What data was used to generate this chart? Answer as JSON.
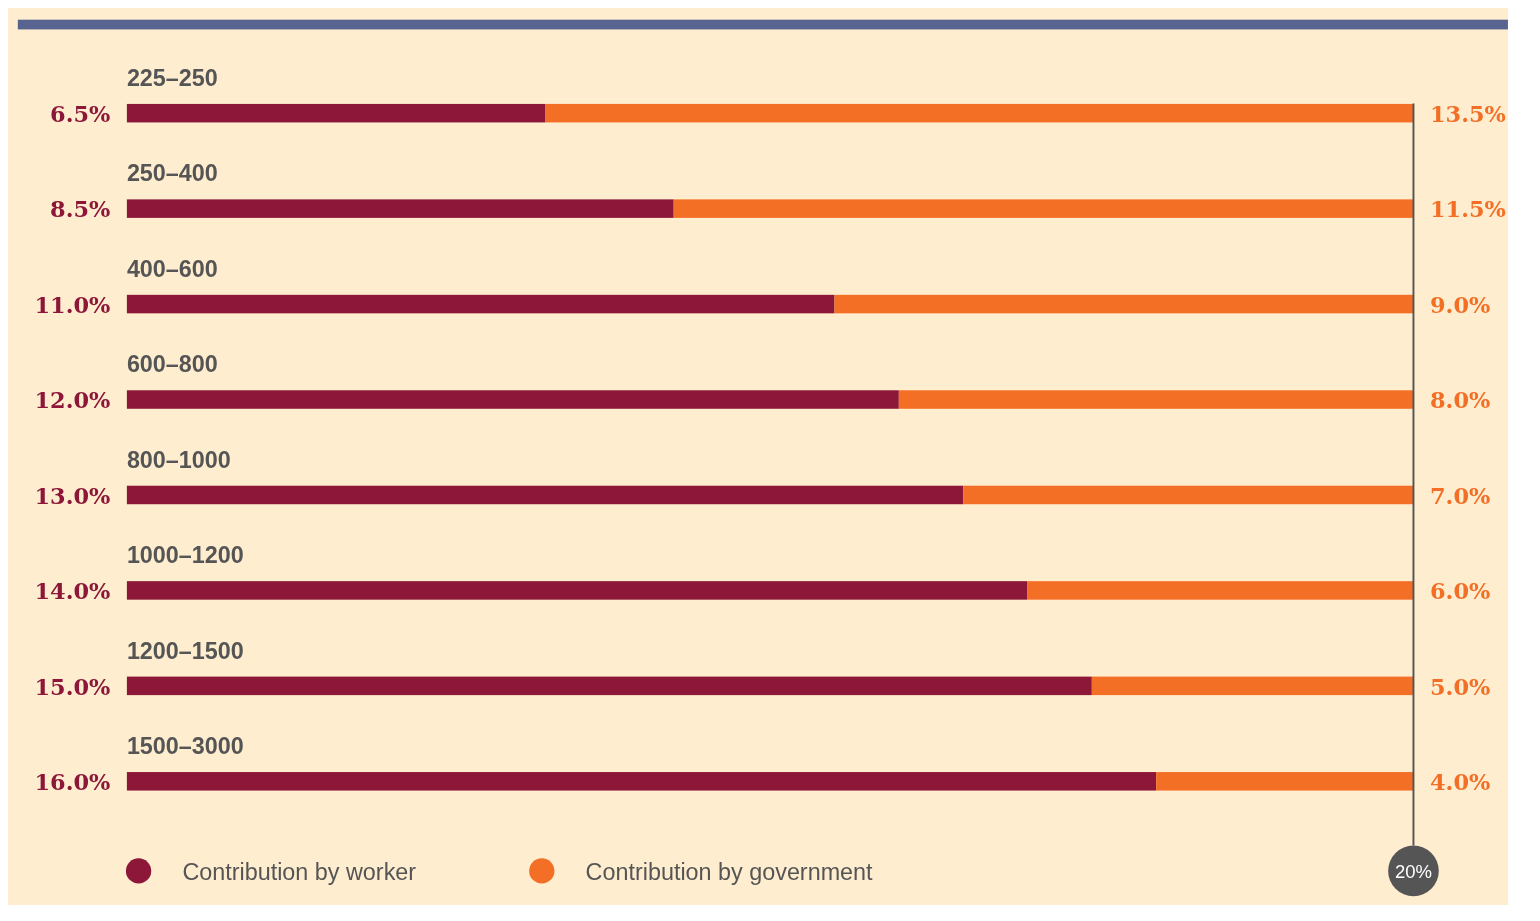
{
  "chart_data": {
    "type": "bar",
    "orientation": "horizontal",
    "stacked": true,
    "categories": [
      "225–250",
      "250–400",
      "400–600",
      "600–800",
      "800–1000",
      "1000–1200",
      "1200–1500",
      "1500–3000"
    ],
    "series": [
      {
        "name": "Contribution by worker",
        "color": "#8c1738",
        "values": [
          6.5,
          8.5,
          11,
          12,
          13,
          14,
          15,
          16
        ],
        "value_labels": [
          "6.5%",
          "8.5%",
          "11.0%",
          "12.0%",
          "13.0%",
          "14.0%",
          "15.0%",
          "16.0%"
        ]
      },
      {
        "name": "Contribution by government",
        "color": "#f36f26",
        "values": [
          13.5,
          11.5,
          9,
          8,
          7,
          6,
          5,
          4
        ],
        "value_labels": [
          "13.5%",
          "11.5%",
          "9.0%",
          "8.0%",
          "7.0%",
          "6.0%",
          "5.0%",
          "4.0%"
        ]
      }
    ],
    "xlim": [
      0,
      20
    ],
    "legend": "bottom left",
    "ref_lines": [
      {
        "axis": "x",
        "value": 20,
        "label": "20%",
        "color": "#555555"
      }
    ]
  }
}
